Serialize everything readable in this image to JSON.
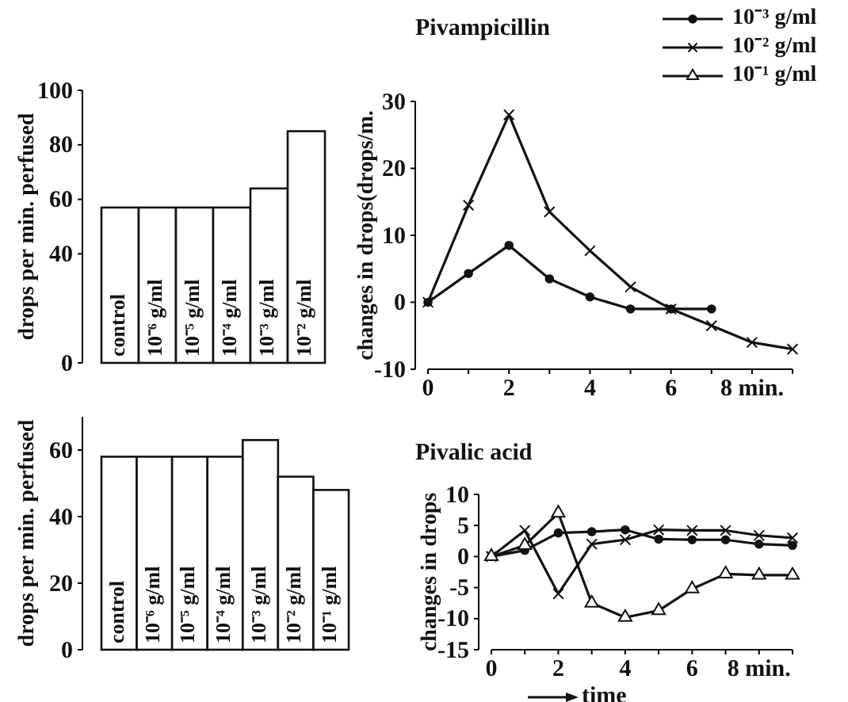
{
  "chart_data": [
    {
      "type": "bar",
      "ylabel": "drops per min. perfused",
      "categories": [
        "control",
        "10⁻⁶ g/ml",
        "10⁻⁵ g/ml",
        "10⁻⁴ g/ml",
        "10⁻³ g/ml",
        "10⁻² g/ml"
      ],
      "values": [
        57,
        57,
        57,
        57,
        64,
        85
      ],
      "color": "#ffffff",
      "ylim": [
        0,
        100
      ],
      "yticks": [
        0,
        40,
        60,
        80,
        100
      ],
      "grid": false
    },
    {
      "type": "line",
      "title": "Pivampicillin",
      "ylabel": "changes in drops(drops/m.",
      "x": [
        0,
        1,
        2,
        3,
        4,
        5,
        6,
        7,
        8,
        9
      ],
      "xlim": [
        0,
        9
      ],
      "xticks": [
        0,
        {
          "value": 1,
          "label": null
        },
        2,
        {
          "value": 3,
          "label": null
        },
        4,
        {
          "value": 5,
          "label": null
        },
        6,
        {
          "value": 7,
          "label": null
        },
        {
          "value": 8,
          "label": "8 min."
        },
        {
          "value": 9,
          "label": null
        }
      ],
      "ylim": [
        -10,
        30
      ],
      "yticks": [
        -10,
        0,
        10,
        20,
        30
      ],
      "grid": false,
      "legend": "top right",
      "series": [
        {
          "name": "10⁻³ g/ml",
          "color": "#111111",
          "marker": "circle",
          "values": [
            0,
            4.3,
            8.5,
            3.5,
            0.8,
            -1,
            -1,
            -1,
            null,
            null
          ]
        },
        {
          "name": "10⁻² g/ml",
          "color": "#111111",
          "marker": "cross",
          "values": [
            0,
            14.5,
            28,
            13.5,
            7.7,
            2.3,
            -1,
            -3.5,
            -6,
            -7
          ]
        },
        {
          "name": "10⁻¹ g/ml",
          "color": "#111111",
          "marker": "triangle",
          "values": [
            null,
            null,
            null,
            null,
            null,
            null,
            null,
            null,
            null,
            null
          ]
        }
      ]
    },
    {
      "type": "bar",
      "ylabel": "drops per min. perfused",
      "categories": [
        "control",
        "10⁻⁶ g/ml",
        "10⁻⁵ g/ml",
        "10⁻⁴ g/ml",
        "10⁻³ g/ml",
        "10⁻² g/ml",
        "10⁻¹ g/ml"
      ],
      "values": [
        58,
        58,
        58,
        58,
        63,
        52,
        48
      ],
      "color": "#ffffff",
      "ylim": [
        0,
        70
      ],
      "yticks": [
        0,
        20,
        40,
        60
      ],
      "grid": false
    },
    {
      "type": "line",
      "title": "Pivalic acid",
      "ylabel": "changes in drops",
      "xlabel": "time",
      "x": [
        0,
        1,
        2,
        3,
        4,
        5,
        6,
        7,
        8,
        9
      ],
      "xlim": [
        0,
        9
      ],
      "xticks": [
        0,
        {
          "value": 1,
          "label": null
        },
        2,
        {
          "value": 3,
          "label": null
        },
        4,
        {
          "value": 5,
          "label": null
        },
        6,
        {
          "value": 7,
          "label": null
        },
        {
          "value": 8,
          "label": "8 min."
        },
        {
          "value": 9,
          "label": null
        }
      ],
      "ylim": [
        -15,
        10
      ],
      "yticks": [
        -15,
        -10,
        -5,
        0,
        5,
        10
      ],
      "grid": false,
      "series": [
        {
          "color": "#111111",
          "marker": "circle",
          "values": [
            0,
            1,
            3.8,
            4,
            4.3,
            2.8,
            2.7,
            2.7,
            2,
            1.8
          ]
        },
        {
          "color": "#111111",
          "marker": "cross",
          "values": [
            0,
            4.2,
            -6,
            2,
            2.7,
            4.3,
            4.2,
            4.2,
            3.4,
            3
          ]
        },
        {
          "color": "#111111",
          "marker": "triangle",
          "values": [
            0,
            1.8,
            7,
            -7.5,
            -9.8,
            -8.7,
            -5.2,
            -2.8,
            -3,
            -3
          ]
        }
      ]
    }
  ]
}
